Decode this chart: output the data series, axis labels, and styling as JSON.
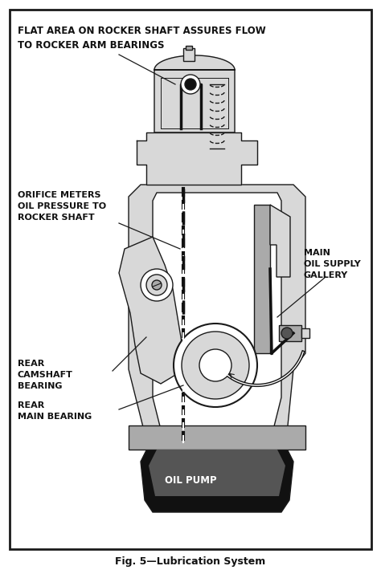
{
  "bg_color": "#ffffff",
  "border_color": "#1a1a1a",
  "text_color": "#111111",
  "title_label": "FLAT AREA ON ROCKER SHAFT ASSURES FLOW\nTO ROCKER ARM BEARINGS",
  "label1": "ORIFICE METERS\nOIL PRESSURE TO\nROCKER SHAFT",
  "label2": "MAIN\nOIL SUPPLY\nGALLERY",
  "label3": "REAR\nCAMSHAFT\nBEARING",
  "label4": "REAR\nMAIN BEARING",
  "label5": "OIL PUMP",
  "caption": "Fig. 5—Lubrication System",
  "figsize": [
    4.74,
    7.15
  ],
  "dpi": 100
}
